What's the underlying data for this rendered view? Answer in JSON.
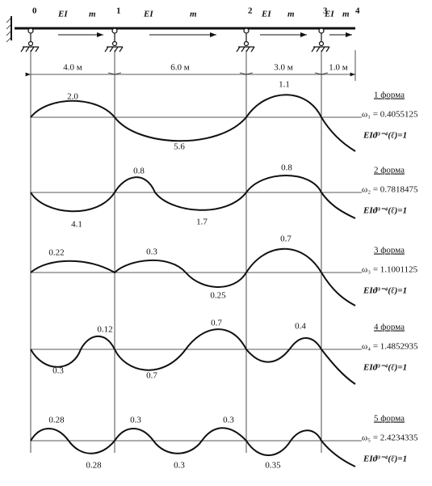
{
  "supports": [
    "0",
    "1",
    "2",
    "3",
    "4"
  ],
  "spans": [
    {
      "stiffness": "EI",
      "mass": "m",
      "length": "4.0 м"
    },
    {
      "stiffness": "EI",
      "mass": "m",
      "length": "6.0 м"
    },
    {
      "stiffness": "EI",
      "mass": "m",
      "length": "3.0 м"
    },
    {
      "stiffness": "EI",
      "mass": "m",
      "length": "1.0 м"
    }
  ],
  "modes": [
    {
      "title": "1 форма",
      "frequency": "ω₁ = 0.4055125",
      "condition": "EIϑ³⁻⁴(ℓ)=1",
      "amplitudes": [
        "2.0",
        "5.6",
        "1.1"
      ]
    },
    {
      "title": "2 форма",
      "frequency": "ω₂ = 0.7818475",
      "condition": "EIϑ³⁻⁴(ℓ)=1",
      "amplitudes": [
        "4.1",
        "0.8",
        "1.7",
        "0.8"
      ]
    },
    {
      "title": "3 форма",
      "frequency": "ω₃ = 1.1001125",
      "condition": "EIϑ³⁻⁴(ℓ)=1",
      "amplitudes": [
        "0.22",
        "0.3",
        "0.25",
        "0.7"
      ]
    },
    {
      "title": "4 форма",
      "frequency": "ω₄ = 1.4852935",
      "condition": "EIϑ³⁻⁴(ℓ)=1",
      "amplitudes": [
        "0.3",
        "0.12",
        "0.7",
        "0.7",
        "0.4"
      ]
    },
    {
      "title": "5 форма",
      "frequency": "ω₅ = 2.4234335",
      "condition": "EIϑ³⁻⁴(ℓ)=1",
      "amplitudes": [
        "0.28",
        "0.28",
        "0.3",
        "0.3",
        "0.3",
        "0.35"
      ]
    }
  ]
}
